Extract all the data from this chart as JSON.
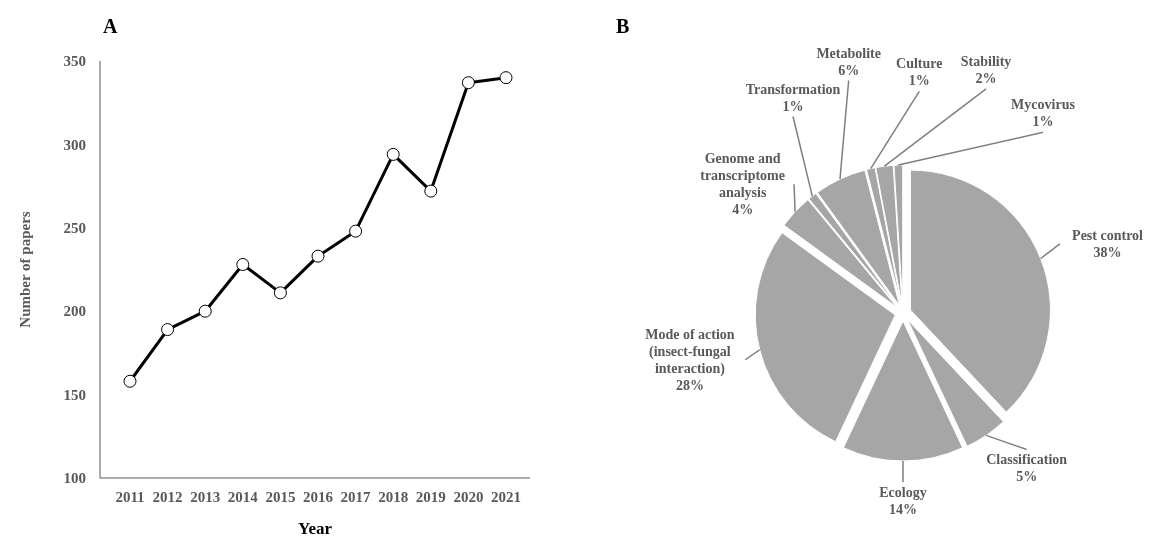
{
  "chart_data": [
    {
      "type": "line",
      "title": "A",
      "xlabel": "Year",
      "ylabel": "Number of papers",
      "categories": [
        "2011",
        "2012",
        "2013",
        "2014",
        "2015",
        "2016",
        "2017",
        "2018",
        "2019",
        "2020",
        "2021"
      ],
      "series": [
        {
          "color": "#000000",
          "values": [
            158,
            189,
            200,
            228,
            211,
            233,
            248,
            294,
            272,
            337,
            340
          ]
        }
      ],
      "ylim": [
        100,
        350
      ],
      "yticks": [
        100,
        150,
        200,
        250,
        300,
        350
      ],
      "grid": false,
      "marker": "circle",
      "line_style": "solid"
    },
    {
      "type": "pie",
      "title": "B",
      "categories": [
        "Pest control",
        "Classification",
        "Ecology",
        "Mode of action (insect-fungal interaction)",
        "Genome and transcriptome analysis",
        "Transformation",
        "Metabolite",
        "Culture",
        "Stability",
        "Mycovirus"
      ],
      "values": [
        38,
        5,
        14,
        28,
        4,
        1,
        6,
        1,
        2,
        1
      ],
      "value_labels": [
        "38%",
        "5%",
        "14%",
        "28%",
        "4%",
        "1%",
        "6%",
        "1%",
        "2%",
        "1%"
      ],
      "colors": [
        "#a6a6a6",
        "#a6a6a6",
        "#a6a6a6",
        "#a6a6a6",
        "#a6a6a6",
        "#a6a6a6",
        "#a6a6a6",
        "#a6a6a6",
        "#a6a6a6",
        "#a6a6a6"
      ]
    }
  ]
}
